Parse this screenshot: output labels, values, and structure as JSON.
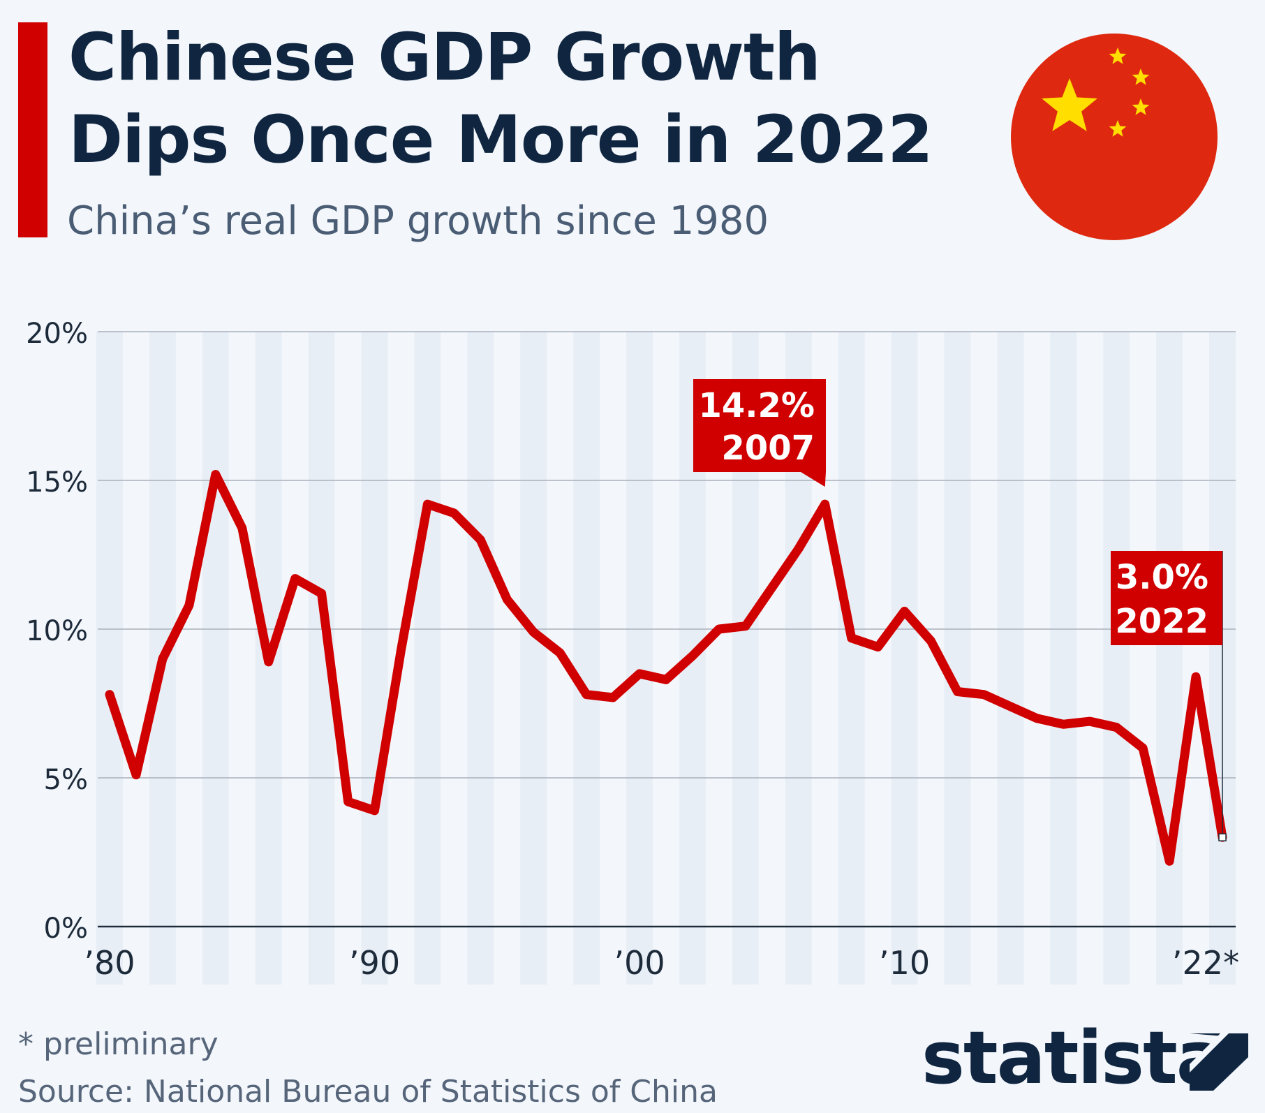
{
  "header": {
    "title_line1": "Chinese GDP Growth",
    "title_line2": "Dips Once More in 2022",
    "subtitle": "China’s real GDP growth since 1980"
  },
  "colors": {
    "accent": "#d10000",
    "line": "#d10000",
    "text_dark": "#0f2540",
    "text_muted": "#4a5d74",
    "flag_red": "#de2910",
    "flag_yellow": "#ffde00",
    "band": "#e8eef6"
  },
  "flag_icon": "china-flag-icon",
  "chart_data": {
    "type": "line",
    "x": [
      1980,
      1981,
      1982,
      1983,
      1984,
      1985,
      1986,
      1987,
      1988,
      1989,
      1990,
      1991,
      1992,
      1993,
      1994,
      1995,
      1996,
      1997,
      1998,
      1999,
      2000,
      2001,
      2002,
      2003,
      2004,
      2005,
      2006,
      2007,
      2008,
      2009,
      2010,
      2011,
      2012,
      2013,
      2014,
      2015,
      2016,
      2017,
      2018,
      2019,
      2020,
      2021,
      2022
    ],
    "series": [
      {
        "values": [
          7.8,
          5.1,
          9.0,
          10.8,
          15.2,
          13.4,
          8.9,
          11.7,
          11.2,
          4.2,
          3.9,
          9.3,
          14.2,
          13.9,
          13.0,
          11.0,
          9.9,
          9.2,
          7.8,
          7.7,
          8.5,
          8.3,
          9.1,
          10.0,
          10.1,
          11.4,
          12.7,
          14.2,
          9.7,
          9.4,
          10.6,
          9.6,
          7.9,
          7.8,
          7.4,
          7.0,
          6.8,
          6.9,
          6.7,
          6.0,
          2.2,
          8.4,
          3.0
        ]
      }
    ],
    "x_ticks": [
      {
        "x": 1980,
        "label": "’80"
      },
      {
        "x": 1990,
        "label": "’90"
      },
      {
        "x": 2000,
        "label": "’00"
      },
      {
        "x": 2010,
        "label": "’10"
      },
      {
        "x": 2022,
        "label": "’22*"
      }
    ],
    "y_ticks": [
      {
        "y": 0,
        "label": "0%"
      },
      {
        "y": 5,
        "label": "5%"
      },
      {
        "y": 10,
        "label": "10%"
      },
      {
        "y": 15,
        "label": "15%"
      },
      {
        "y": 20,
        "label": "20%"
      }
    ],
    "ylim": [
      0,
      20
    ],
    "xlim": [
      1980,
      2022
    ],
    "grid": true,
    "annotations": [
      {
        "x": 2007,
        "y": 14.2,
        "value_label": "14.2%",
        "year_label": "2007"
      },
      {
        "x": 2022,
        "y": 3.0,
        "value_label": "3.0%",
        "year_label": "2022"
      }
    ]
  },
  "footer": {
    "footnote": "* preliminary",
    "source": "Source: National Bureau of Statistics of China",
    "logo": "statista"
  }
}
